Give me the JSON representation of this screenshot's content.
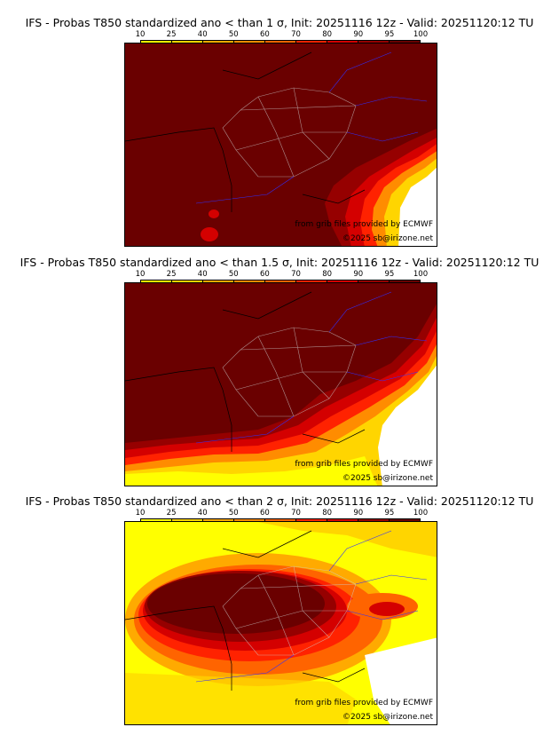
{
  "colorbar": {
    "ticks": [
      "10",
      "25",
      "40",
      "50",
      "60",
      "70",
      "80",
      "90",
      "95",
      "100"
    ],
    "colors": [
      "#ffff00",
      "#ffd500",
      "#ffaa00",
      "#ff8c00",
      "#ff6400",
      "#ff2200",
      "#d40000",
      "#960000",
      "#6a0000"
    ]
  },
  "panels": [
    {
      "title": "IFS - Probas T850  standardized ano < than 1 σ, Init: 20251116 12z - Valid: 20251120:12 TU"
    },
    {
      "title": "IFS - Probas T850  standardized ano < than 1.5 σ, Init: 20251116 12z - Valid: 20251120:12 TU"
    },
    {
      "title": "IFS - Probas T850  standardized ano < than 2 σ, Init: 20251116 12z - Valid: 20251120:12 TU"
    }
  ],
  "credits": {
    "source": "from grib files provided by ECMWF",
    "copyright": "©2025 sb@irizone.net"
  }
}
